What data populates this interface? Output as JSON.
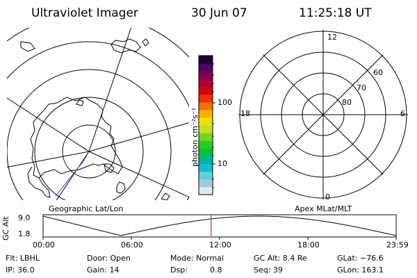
{
  "header": {
    "instrument": "Ultraviolet Imager",
    "date": "30 Jun 07",
    "time": "11:25:18 UT"
  },
  "left_map": {
    "caption": "Geographic Lat/Lon"
  },
  "right_map": {
    "caption": "Apex MLat/MLT",
    "mlt_labels": [
      "12",
      "18",
      "6",
      "0"
    ],
    "lat_labels": [
      "60",
      "70",
      "80"
    ]
  },
  "colorbar": {
    "unit_label": "photon cm⁻²s⁻¹",
    "tick_labels": [
      "100",
      "10"
    ],
    "colors": [
      "#dfe9ef",
      "#a8c8d8",
      "#5fd0e0",
      "#18b8d8",
      "#00b0a0",
      "#00c040",
      "#20d020",
      "#70d820",
      "#c0e020",
      "#f0e000",
      "#f8b000",
      "#f07000",
      "#e83000",
      "#d80000",
      "#b00030",
      "#800050",
      "#500060",
      "#200030"
    ]
  },
  "gc_alt_panel": {
    "axis_label": "GC Alt",
    "y_max_label": "9.0",
    "y_min_label": "1.8",
    "time_labels": [
      "00:00",
      "06:00",
      "12:00",
      "18:00",
      "23:59"
    ],
    "current_time_fraction": 0.476,
    "marker_color": "#cc0000"
  },
  "footer": {
    "row1": {
      "flt": "Flt: LBHL",
      "door": "Door: Open",
      "mode": "Mode: Normal",
      "gcalt": "GC Alt: 8.4 Re",
      "glat": "GLat: −76.6"
    },
    "row2": {
      "ip": "IP: 36.0",
      "gain": "Gain: 14",
      "dsp_label": "Dsp:",
      "dsp_value": "0.8",
      "seq": "Seq: 39",
      "glon": "GLon: 163.1"
    }
  }
}
